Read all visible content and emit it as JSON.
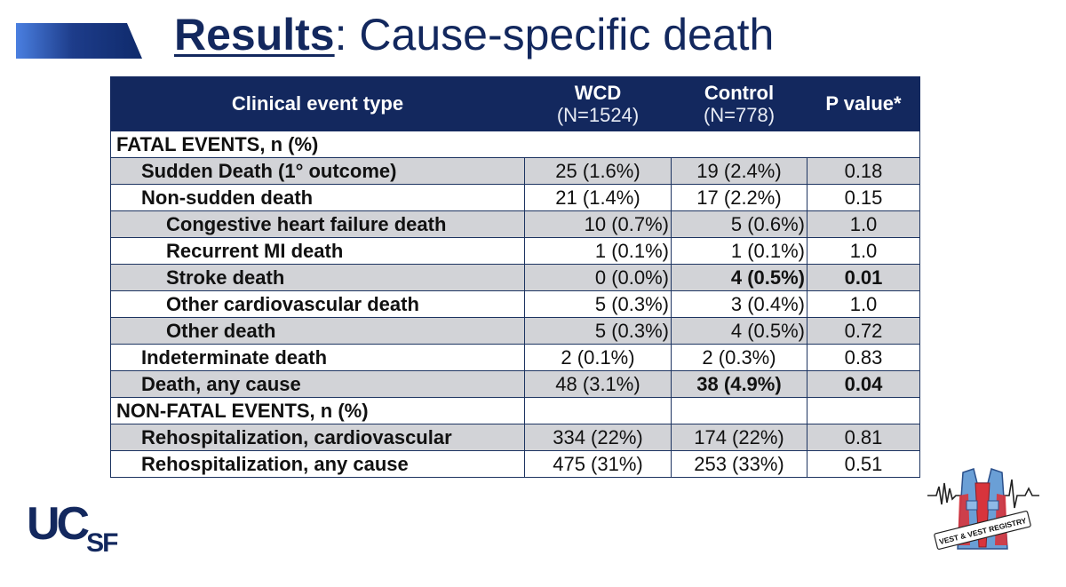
{
  "title": {
    "lead": "Results",
    "rest": ": Cause-specific death"
  },
  "table": {
    "headers": [
      {
        "main": "Clinical event type",
        "sub": ""
      },
      {
        "main": "WCD",
        "sub": "(N=1524)"
      },
      {
        "main": "Control",
        "sub": "(N=778)"
      },
      {
        "main": "P value*",
        "sub": ""
      }
    ],
    "rows": [
      {
        "label": "FATAL EVENTS, n (%)",
        "wcd": "",
        "control": "",
        "p": ""
      },
      {
        "label": "Sudden Death (1° outcome)",
        "wcd": "25 (1.6%)",
        "control": "19 (2.4%)",
        "p": "0.18"
      },
      {
        "label": "Non-sudden death",
        "wcd": "21 (1.4%)",
        "control": "17 (2.2%)",
        "p": "0.15"
      },
      {
        "label": "Congestive heart failure death",
        "wcd": "10 (0.7%)",
        "control": "5 (0.6%)",
        "p": "1.0"
      },
      {
        "label": "Recurrent MI death",
        "wcd": "1 (0.1%)",
        "control": "1 (0.1%)",
        "p": "1.0"
      },
      {
        "label": "Stroke death",
        "wcd": "0 (0.0%)",
        "control": "4 (0.5%)",
        "p": "0.01"
      },
      {
        "label": "Other cardiovascular death",
        "wcd": "5 (0.3%)",
        "control": "3 (0.4%)",
        "p": "1.0"
      },
      {
        "label": "Other death",
        "wcd": "5 (0.3%)",
        "control": "4 (0.5%)",
        "p": "0.72"
      },
      {
        "label": "Indeterminate death",
        "wcd": "2 (0.1%)",
        "control": "2 (0.3%)",
        "p": "0.83"
      },
      {
        "label": "Death, any cause",
        "wcd": "48 (3.1%)",
        "control": "38 (4.9%)",
        "p": "0.04"
      },
      {
        "label": "NON-FATAL EVENTS, n (%)",
        "wcd": "",
        "control": "",
        "p": ""
      },
      {
        "label": "Rehospitalization, cardiovascular",
        "wcd": "334 (22%)",
        "control": "174 (22%)",
        "p": "0.81"
      },
      {
        "label": "Rehospitalization, any cause",
        "wcd": "475 (31%)",
        "control": "253 (33%)",
        "p": "0.51"
      }
    ]
  },
  "logos": {
    "ucsf_uc": "UC",
    "ucsf_sf": "SF",
    "vest_banner": "VEST & VEST REGISTRY"
  },
  "colors": {
    "navy": "#13285e",
    "row_shade": "#d2d3d7",
    "vest_blue": "#6a9fd6",
    "vest_red": "#d8343c"
  }
}
